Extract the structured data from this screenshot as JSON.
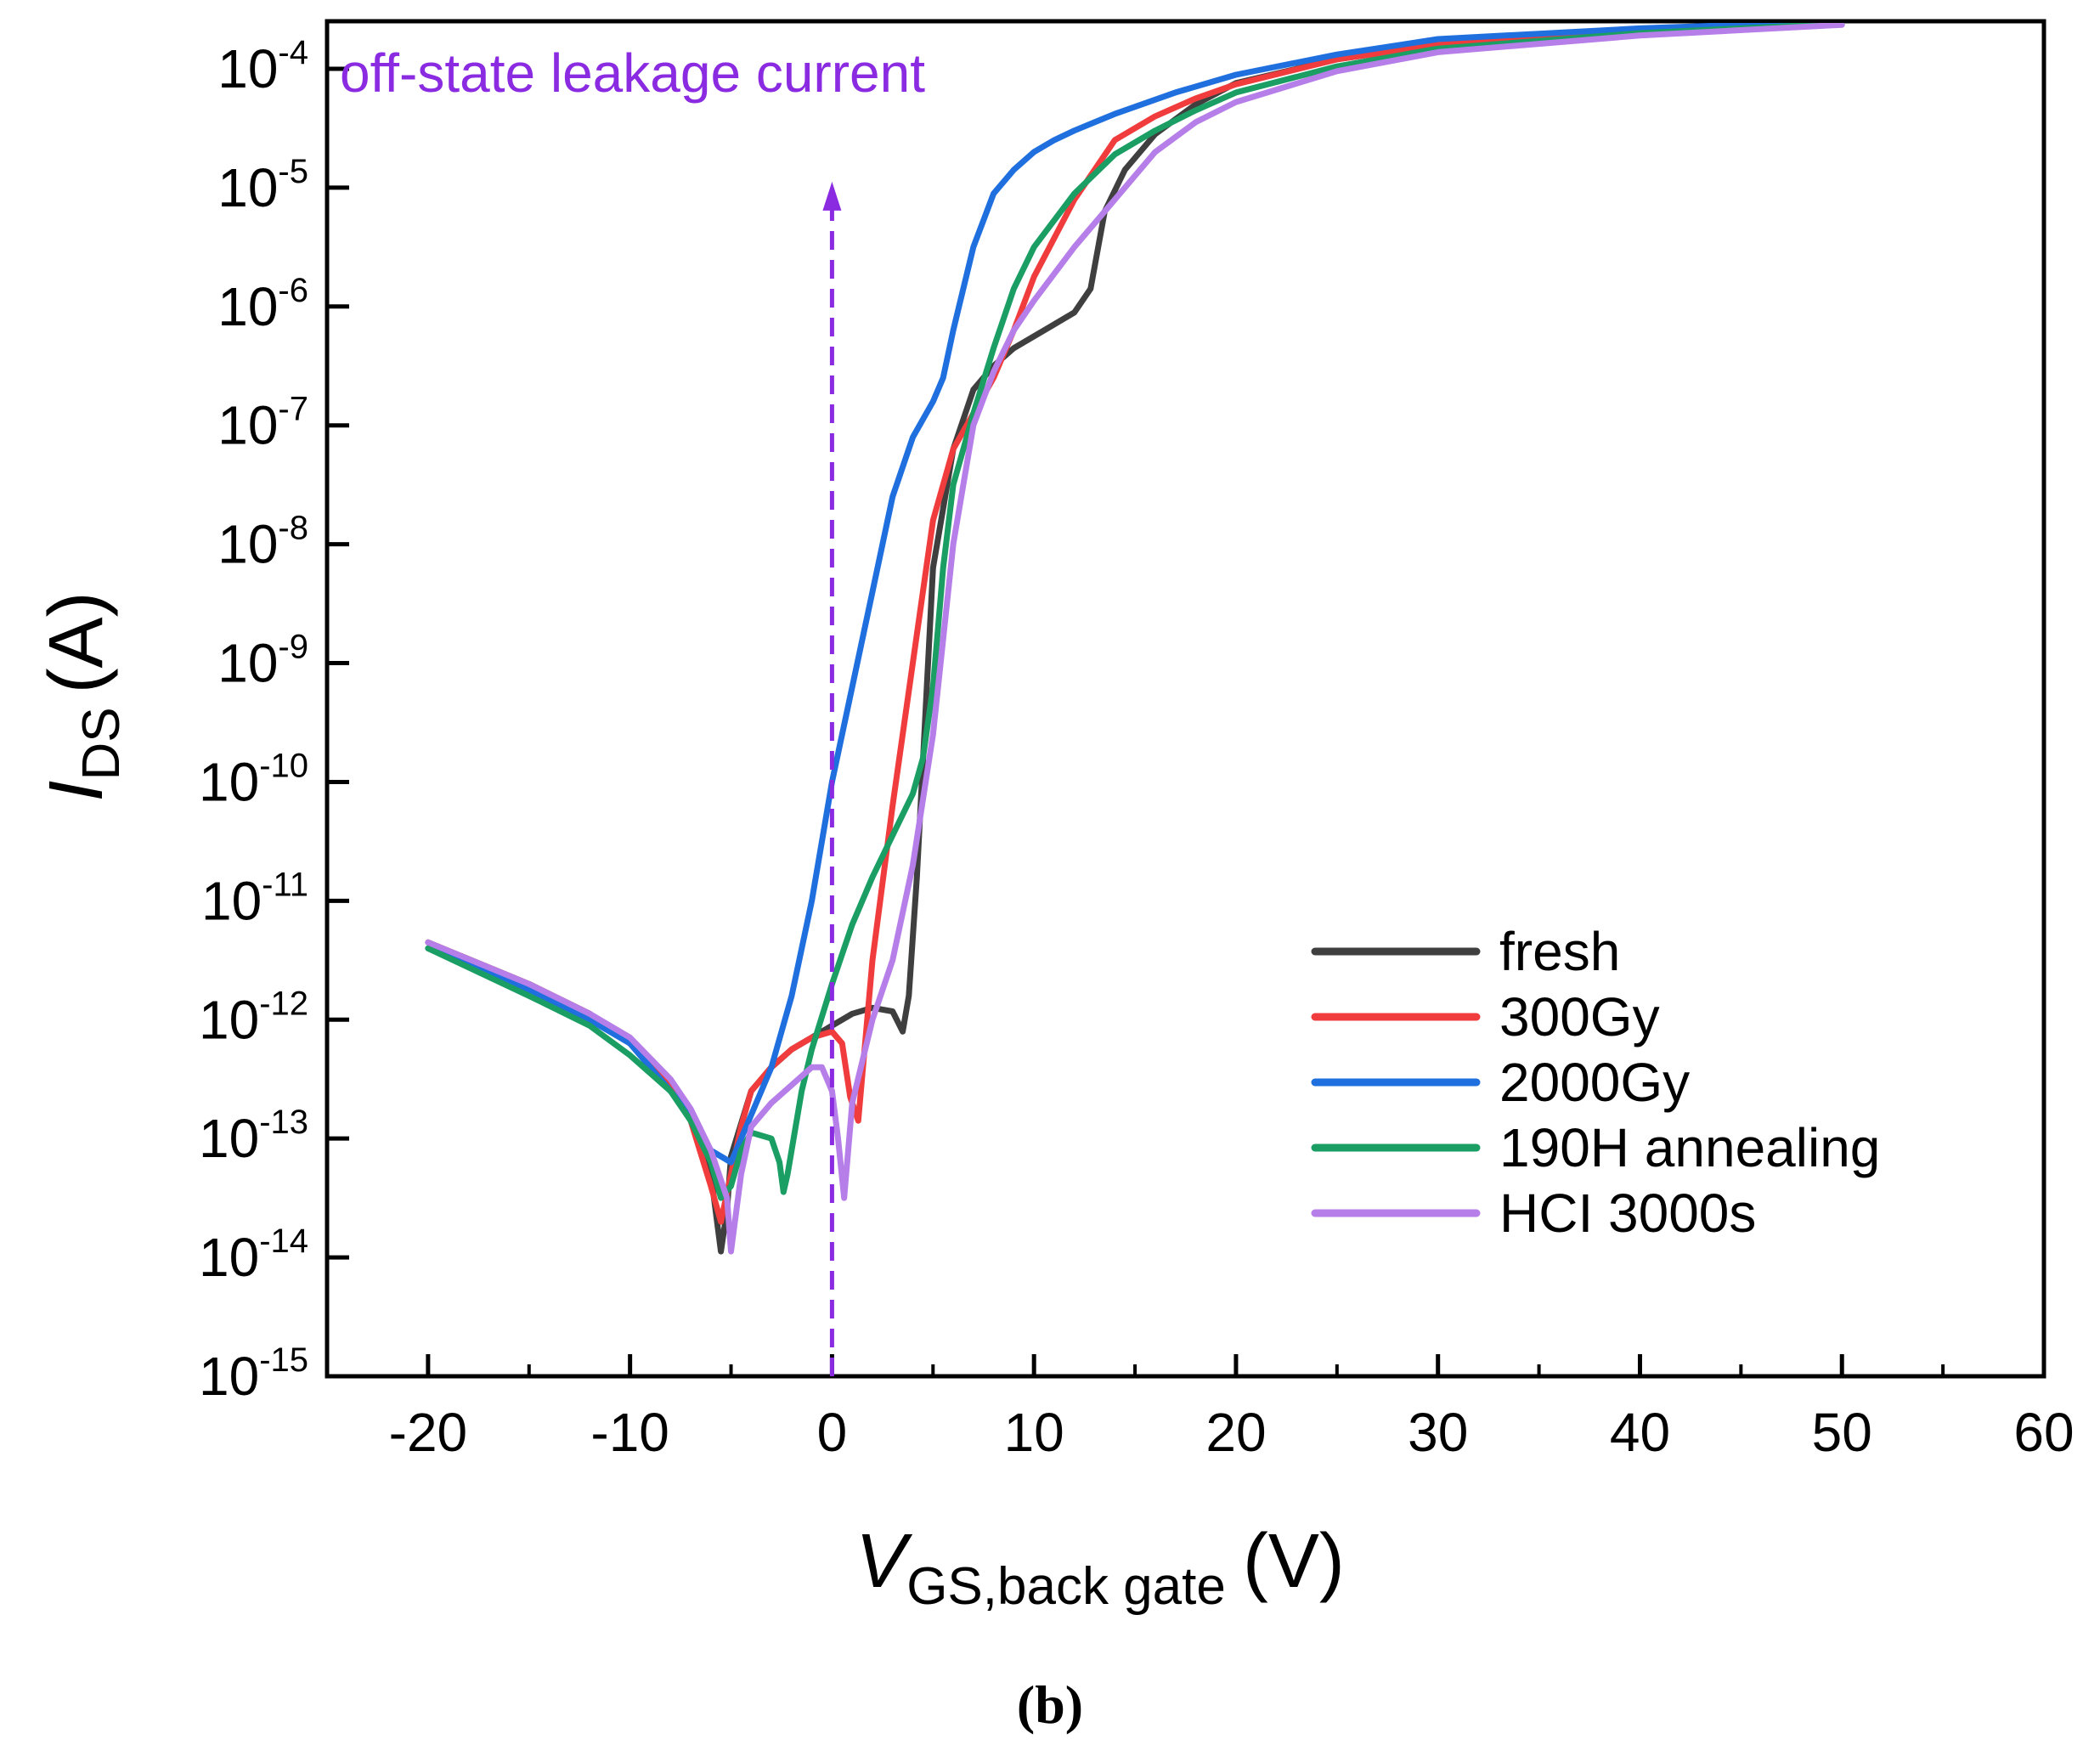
{
  "chart_data": {
    "type": "line",
    "title": "",
    "xlabel": {
      "main": "V",
      "sub": "GS,back gate",
      "unit": "(V)"
    },
    "ylabel": {
      "main": "I",
      "sub": "DS",
      "unit": "(A)"
    },
    "xlim": [
      -25,
      60
    ],
    "ylim_exp": [
      -15,
      -3.6
    ],
    "y_scale": "log",
    "x_ticks": [
      "-20",
      "-10",
      "0",
      "10",
      "20",
      "30",
      "40",
      "50",
      "60"
    ],
    "x_tick_values": [
      -20,
      -10,
      0,
      10,
      20,
      30,
      40,
      50,
      60
    ],
    "y_ticks": [
      {
        "base": "10",
        "exp": "-4",
        "value": -4
      },
      {
        "base": "10",
        "exp": "-5",
        "value": -5
      },
      {
        "base": "10",
        "exp": "-6",
        "value": -6
      },
      {
        "base": "10",
        "exp": "-7",
        "value": -7
      },
      {
        "base": "10",
        "exp": "-8",
        "value": -8
      },
      {
        "base": "10",
        "exp": "-9",
        "value": -9
      },
      {
        "base": "10",
        "exp": "-10",
        "value": -10
      },
      {
        "base": "10",
        "exp": "-11",
        "value": -11
      },
      {
        "base": "10",
        "exp": "-12",
        "value": -12
      },
      {
        "base": "10",
        "exp": "-13",
        "value": -13
      },
      {
        "base": "10",
        "exp": "-14",
        "value": -14
      },
      {
        "base": "10",
        "exp": "-15",
        "value": -15
      }
    ],
    "annotation": {
      "text": "off-state leakage current",
      "x": 0,
      "y_from": -15,
      "y_to": -4.95,
      "color": "#8a2be2"
    },
    "legend_position": "bottom-right",
    "series": [
      {
        "name": "fresh",
        "color": "#3f3f3f",
        "x": [
          -20,
          -15,
          -12,
          -10,
          -8,
          -7,
          -6,
          -5.5,
          -5.2,
          -5,
          -4,
          -3,
          -2,
          -1,
          0,
          1,
          2,
          3,
          3.5,
          3.8,
          4.2,
          4.6,
          5,
          6,
          7,
          8,
          9,
          10,
          11,
          12,
          12.8,
          13.5,
          14.5,
          16,
          18,
          20,
          25,
          30,
          40,
          50
        ],
        "y": [
          -11.35,
          -11.7,
          -11.95,
          -12.2,
          -12.55,
          -12.8,
          -13.3,
          -13.95,
          -13.6,
          -13.15,
          -12.6,
          -12.4,
          -12.25,
          -12.15,
          -12.05,
          -11.95,
          -11.9,
          -11.93,
          -12.1,
          -11.8,
          -10.8,
          -9.5,
          -8.2,
          -7.2,
          -6.7,
          -6.5,
          -6.35,
          -6.25,
          -6.15,
          -6.05,
          -5.85,
          -5.2,
          -4.85,
          -4.55,
          -4.3,
          -4.12,
          -3.92,
          -3.8,
          -3.68,
          -3.6
        ]
      },
      {
        "name": "300Gy",
        "color": "#f03c3c",
        "x": [
          -20,
          -15,
          -12,
          -10,
          -8,
          -7,
          -6,
          -5.5,
          -5,
          -4.5,
          -4,
          -3,
          -2,
          -1,
          0,
          0.5,
          0.9,
          1.3,
          2,
          3,
          4,
          5,
          6,
          7,
          8,
          9,
          10,
          12,
          14,
          16,
          18,
          20,
          25,
          30,
          40,
          50
        ],
        "y": [
          -11.35,
          -11.7,
          -11.95,
          -12.2,
          -12.55,
          -12.85,
          -13.4,
          -13.7,
          -13.3,
          -12.9,
          -12.6,
          -12.4,
          -12.25,
          -12.15,
          -12.1,
          -12.2,
          -12.65,
          -12.85,
          -11.5,
          -10.2,
          -9,
          -7.8,
          -7.2,
          -6.9,
          -6.6,
          -6.2,
          -5.75,
          -5.1,
          -4.6,
          -4.4,
          -4.25,
          -4.13,
          -3.92,
          -3.8,
          -3.68,
          -3.6
        ]
      },
      {
        "name": "2000Gy",
        "color": "#1f6fdf",
        "x": [
          -20,
          -15,
          -12,
          -10,
          -8,
          -7,
          -6,
          -5,
          -4,
          -3,
          -2,
          -1,
          0,
          1,
          2,
          3,
          4,
          5,
          5.5,
          6,
          7,
          8,
          9,
          10,
          11,
          12,
          13,
          14,
          15,
          17,
          20,
          25,
          30,
          40,
          50
        ],
        "y": [
          -11.4,
          -11.75,
          -12,
          -12.2,
          -12.6,
          -12.8,
          -13.1,
          -13.2,
          -12.8,
          -12.4,
          -11.8,
          -11,
          -10,
          -9.2,
          -8.4,
          -7.6,
          -7.1,
          -6.8,
          -6.6,
          -6.2,
          -5.5,
          -5.05,
          -4.85,
          -4.7,
          -4.6,
          -4.52,
          -4.45,
          -4.38,
          -4.32,
          -4.2,
          -4.05,
          -3.88,
          -3.75,
          -3.66,
          -3.6
        ]
      },
      {
        "name": "190H annealing",
        "color": "#1a9e63",
        "x": [
          -20,
          -15,
          -12,
          -10,
          -8,
          -7,
          -6,
          -5.5,
          -5,
          -4.5,
          -4,
          -3,
          -2.6,
          -2.4,
          -2.2,
          -1.5,
          -1,
          0,
          1,
          2,
          3,
          4,
          4.5,
          5,
          5.5,
          6,
          7,
          8,
          9,
          10,
          12,
          14,
          16,
          18,
          20,
          25,
          30,
          40,
          50
        ],
        "y": [
          -11.4,
          -11.8,
          -12.05,
          -12.3,
          -12.6,
          -12.85,
          -13.2,
          -13.5,
          -13.4,
          -13.1,
          -12.95,
          -13,
          -13.2,
          -13.45,
          -13.3,
          -12.6,
          -12.25,
          -11.7,
          -11.2,
          -10.8,
          -10.45,
          -10.1,
          -9.8,
          -9.2,
          -8.2,
          -7.5,
          -6.9,
          -6.35,
          -5.85,
          -5.5,
          -5.05,
          -4.72,
          -4.52,
          -4.35,
          -4.2,
          -3.98,
          -3.83,
          -3.7,
          -3.62
        ]
      },
      {
        "name": "HCI 3000s",
        "color": "#b67ee8",
        "x": [
          -20,
          -15,
          -12,
          -10,
          -8,
          -7,
          -6,
          -5.2,
          -5,
          -4.5,
          -4,
          -3,
          -2,
          -1,
          -0.5,
          0,
          0.3,
          0.6,
          1,
          2,
          3,
          4,
          5,
          6,
          7,
          8,
          9,
          10,
          12,
          14,
          16,
          18,
          20,
          25,
          30,
          40,
          50
        ],
        "y": [
          -11.35,
          -11.7,
          -11.95,
          -12.15,
          -12.5,
          -12.75,
          -13.1,
          -13.5,
          -13.95,
          -13.3,
          -12.9,
          -12.7,
          -12.55,
          -12.4,
          -12.4,
          -12.6,
          -13,
          -13.5,
          -12.7,
          -12,
          -11.5,
          -10.7,
          -9.6,
          -8,
          -7,
          -6.55,
          -6.2,
          -5.95,
          -5.5,
          -5.1,
          -4.7,
          -4.45,
          -4.28,
          -4.02,
          -3.86,
          -3.72,
          -3.63
        ]
      }
    ]
  },
  "caption": "(b)"
}
